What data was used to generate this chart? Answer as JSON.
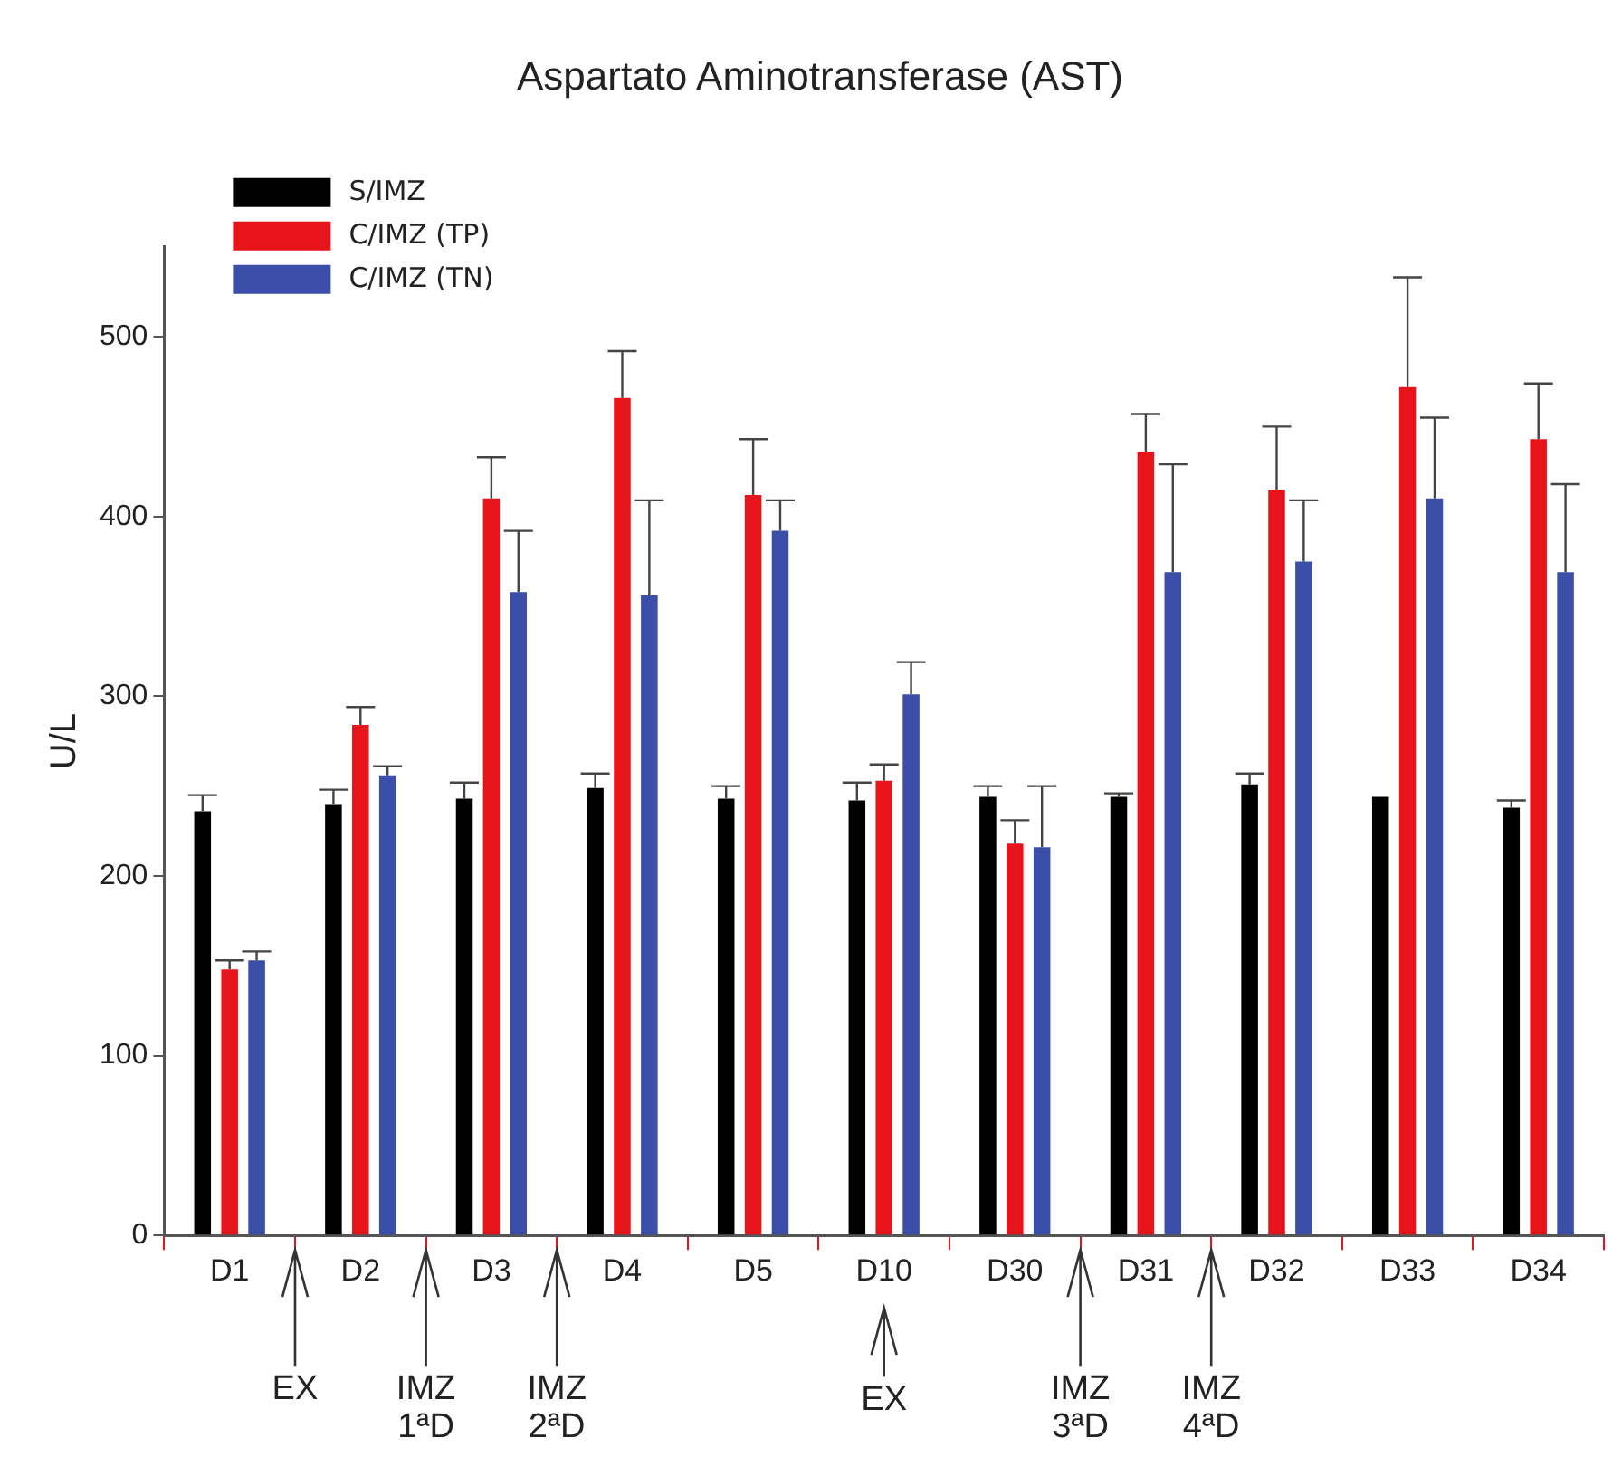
{
  "chart_data": {
    "type": "bar",
    "title": "Aspartato Aminotransferase (AST)",
    "ylabel": "U/L",
    "categories": [
      "D1",
      "D2",
      "D3",
      "D4",
      "D5",
      "D10",
      "D30",
      "D31",
      "D32",
      "D33",
      "D34"
    ],
    "series": [
      {
        "name": "S/IMZ",
        "color": "#000000",
        "values": [
          236,
          240,
          243,
          249,
          243,
          242,
          244,
          244,
          251,
          244,
          238
        ],
        "errors": [
          9,
          8,
          9,
          8,
          7,
          10,
          6,
          2,
          6,
          null,
          4
        ]
      },
      {
        "name": "C/IMZ (TP)",
        "color": "#e8141c",
        "values": [
          148,
          284,
          410,
          466,
          412,
          253,
          218,
          436,
          415,
          472,
          443
        ],
        "errors": [
          5,
          10,
          23,
          26,
          31,
          9,
          13,
          21,
          35,
          61,
          31
        ]
      },
      {
        "name": "C/IMZ (TN)",
        "color": "#3b4fa8",
        "values": [
          153,
          256,
          358,
          356,
          392,
          301,
          216,
          369,
          375,
          410,
          369
        ],
        "errors": [
          5,
          5,
          34,
          53,
          17,
          18,
          34,
          60,
          34,
          45,
          49
        ]
      }
    ],
    "ylim": [
      0,
      550
    ],
    "yticks": [
      0,
      100,
      200,
      300,
      400,
      500
    ],
    "grid": false,
    "legend": "top left",
    "annotations": [
      "EX",
      "IMZ 1ªD",
      "IMZ 2ªD",
      {
        "text": "EX",
        "x": "D10"
      },
      "IMZ 3ªD",
      "IMZ 4ªD"
    ]
  }
}
